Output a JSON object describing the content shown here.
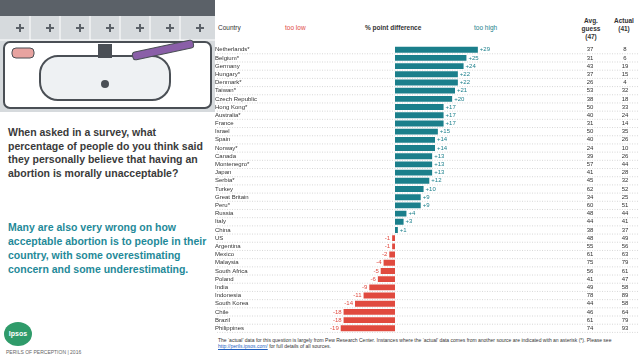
{
  "page": {
    "question": "When asked in a survey, what percentage of people do you think said they personally believe that having an abortion is morally unacceptable?",
    "comment": "Many are also very wrong on how acceptable abortion is to people in their country, with some overestimating concern and some underestimating.",
    "footer": "PERILS OF PERCEPTION | 2016",
    "logo": "Ipsos",
    "footnote": "The ‘actual’ data for this question is largely from Pew Research Center. Instances where the ‘actual’ data comes from another source are indicated with an asterisk (*). Please see",
    "footnote_link": "http://perils.ipsos.com/",
    "footnote_end": "for full details of all sources."
  },
  "chart_data": {
    "type": "bar",
    "orientation": "horizontal",
    "category_header": "Country",
    "xlabel": "% point difference",
    "x_low_label": "too low",
    "x_high_label": "too high",
    "categories": [
      "Netherlands*",
      "Belgium*",
      "Germany",
      "Hungary*",
      "Denmark*",
      "Taiwan*",
      "Czech Republic",
      "Hong Kong*",
      "Australia*",
      "France",
      "Israel",
      "Spain",
      "Norway*",
      "Canada",
      "Montenegro*",
      "Japan",
      "Serbia*",
      "Turkey",
      "Great Britain",
      "Peru*",
      "Russia",
      "Italy",
      "China",
      "US",
      "Argentina",
      "Mexico",
      "Malaysia",
      "South Africa",
      "Poland",
      "India",
      "Indonesia",
      "South Korea",
      "Chile",
      "Brazil",
      "Philippines"
    ],
    "values": [
      29,
      25,
      24,
      22,
      22,
      21,
      20,
      17,
      17,
      17,
      15,
      14,
      14,
      13,
      13,
      13,
      12,
      10,
      9,
      9,
      4,
      3,
      1,
      -1,
      -1,
      -2,
      -4,
      -5,
      -6,
      -9,
      -11,
      -14,
      -18,
      -18,
      -19
    ],
    "value_labels": [
      "+29",
      "+25",
      "+24",
      "+22",
      "+22",
      "+21",
      "+20",
      "+17",
      "+17",
      "+17",
      "+15",
      "+14",
      "+14",
      "+13",
      "+13",
      "+13",
      "+12",
      "+10",
      "+9",
      "+9",
      "+4",
      "+3",
      "+1",
      "-1",
      "-1",
      "-2",
      "-4",
      "-5",
      "-6",
      "-9",
      "-11",
      "-14",
      "-18",
      "-18",
      "-19"
    ],
    "colors": [
      "#1b7f8b",
      "#1b7f8b",
      "#1b7f8b",
      "#1b7f8b",
      "#1b7f8b",
      "#1b7f8b",
      "#1b7f8b",
      "#1b7f8b",
      "#1b7f8b",
      "#1b7f8b",
      "#1b7f8b",
      "#1b7f8b",
      "#1b7f8b",
      "#1b7f8b",
      "#1b7f8b",
      "#1b7f8b",
      "#1b7f8b",
      "#1b7f8b",
      "#1b7f8b",
      "#1b7f8b",
      "#1b7f8b",
      "#1b7f8b",
      "#1b7f8b",
      "#e04a3f",
      "#e04a3f",
      "#e04a3f",
      "#e04a3f",
      "#e04a3f",
      "#e04a3f",
      "#e04a3f",
      "#e04a3f",
      "#e04a3f",
      "#e04a3f",
      "#e04a3f",
      "#e04a3f"
    ],
    "xlim": [
      -35,
      35
    ],
    "tick_labels": "y",
    "grid": false,
    "data_labels": true,
    "table_columns": [
      {
        "name": "Avg. guess",
        "note": "(47)",
        "values": [
          37,
          31,
          43,
          37,
          26,
          53,
          38,
          50,
          40,
          31,
          50,
          40,
          24,
          39,
          57,
          41,
          45,
          62,
          34,
          60,
          48,
          44,
          38,
          48,
          55,
          61,
          75,
          56,
          41,
          49,
          78,
          44,
          46,
          61,
          74
        ]
      },
      {
        "name": "Actual",
        "note": "(41)",
        "values": [
          8,
          6,
          19,
          15,
          4,
          32,
          18,
          33,
          24,
          14,
          35,
          26,
          10,
          26,
          44,
          28,
          32,
          52,
          25,
          51,
          44,
          41,
          37,
          49,
          56,
          63,
          79,
          61,
          47,
          58,
          89,
          58,
          64,
          79,
          93
        ]
      }
    ]
  }
}
